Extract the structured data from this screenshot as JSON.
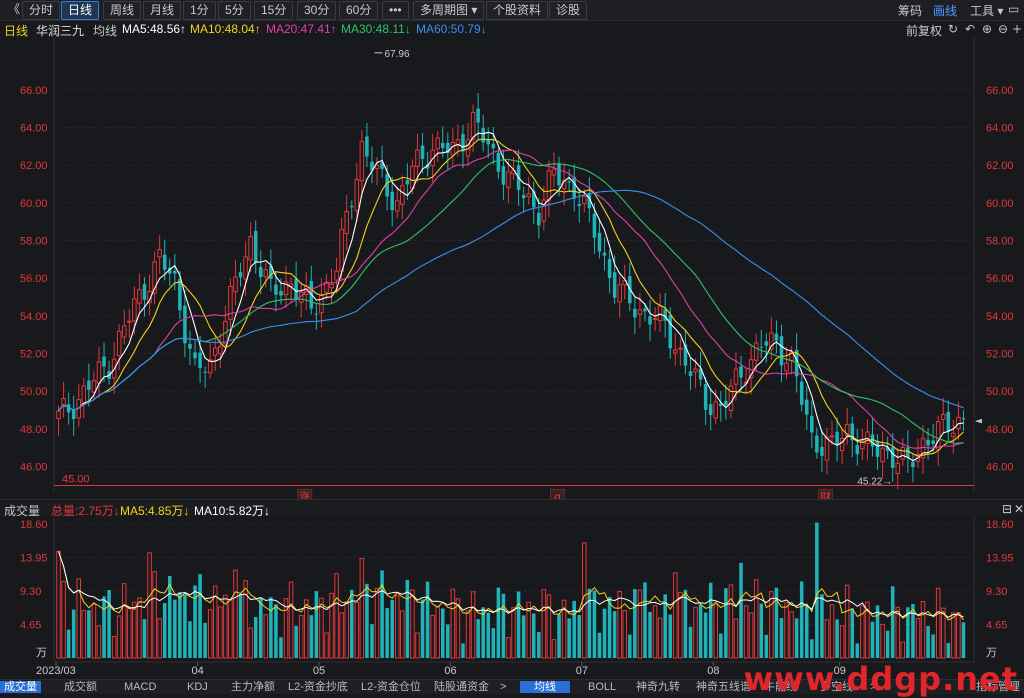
{
  "toolbar": {
    "back": "《",
    "tabs": [
      "分时",
      "日线",
      "周线",
      "月线",
      "1分",
      "5分",
      "15分",
      "30分",
      "60分",
      "•••",
      "多周期图 ▾",
      "个股资料",
      "诊股"
    ],
    "active_tab": "日线",
    "right_items": [
      "筹码",
      "画线",
      "工具 ▾"
    ],
    "right_active": "画线"
  },
  "info_row": {
    "period": "日线",
    "stock": "华润三九",
    "avg": "均线",
    "ma5": "MA5:48.56↑",
    "ma10": "MA10:48.04↑",
    "ma20": "MA20:47.41↑",
    "ma30": "MA30:48.11↓",
    "ma60": "MA60:50.79↓",
    "adjust": "前复权"
  },
  "colors": {
    "up": "#e0383a",
    "down": "#1fb3b8",
    "ma5": "#ffffff",
    "ma10": "#f2d21b",
    "ma20": "#e040a8",
    "ma30": "#2fc463",
    "ma60": "#3a8ff0",
    "background": "#18191d"
  },
  "chart_data": [
    {
      "type": "candlestick",
      "title": "华润三九 日线",
      "ylim": [
        45,
        68
      ],
      "yticks": [
        "66.00",
        "64.00",
        "62.00",
        "60.00",
        "58.00",
        "56.00",
        "54.00",
        "52.00",
        "50.00",
        "48.00",
        "46.00"
      ],
      "annotations": {
        "high_label": "67.96",
        "low_label": "45.22",
        "base_label": "45.00"
      },
      "event_marks": [
        "涨",
        "q",
        "财"
      ],
      "last_price_marker": "◄",
      "x_months": [
        "2023/03",
        "04",
        "05",
        "06",
        "07",
        "08",
        "09"
      ],
      "anchors": [
        [
          0,
          48.6
        ],
        [
          4,
          49.6
        ],
        [
          10,
          51.5
        ],
        [
          15,
          54.5
        ],
        [
          20,
          57.0
        ],
        [
          23,
          55.8
        ],
        [
          27,
          51.0
        ],
        [
          30,
          51.4
        ],
        [
          33,
          54.0
        ],
        [
          38,
          58.0
        ],
        [
          42,
          55.2
        ],
        [
          46,
          55.8
        ],
        [
          50,
          54.3
        ],
        [
          55,
          56.5
        ],
        [
          60,
          63.0
        ],
        [
          63,
          61.5
        ],
        [
          67,
          60.0
        ],
        [
          70,
          61.8
        ],
        [
          74,
          63.0
        ],
        [
          78,
          62.7
        ],
        [
          82,
          64.3
        ],
        [
          86,
          62.5
        ],
        [
          90,
          61.0
        ],
        [
          95,
          59.6
        ],
        [
          98,
          61.5
        ],
        [
          102,
          60.8
        ],
        [
          106,
          58.5
        ],
        [
          110,
          55.5
        ],
        [
          115,
          54.3
        ],
        [
          120,
          53.5
        ],
        [
          124,
          51.5
        ],
        [
          128,
          49.6
        ],
        [
          131,
          49.0
        ],
        [
          135,
          51.0
        ],
        [
          139,
          52.4
        ],
        [
          142,
          52.6
        ],
        [
          145,
          51.5
        ],
        [
          149,
          47.5
        ],
        [
          153,
          47.0
        ],
        [
          156,
          47.9
        ],
        [
          160,
          47.0
        ],
        [
          164,
          46.8
        ],
        [
          168,
          46.0
        ],
        [
          171,
          47.3
        ],
        [
          175,
          48.0
        ],
        [
          178,
          48.5
        ]
      ],
      "volume_anchors": [
        [
          0,
          8.2
        ],
        [
          10,
          6.5
        ],
        [
          20,
          9.0
        ],
        [
          30,
          8.0
        ],
        [
          40,
          6.8
        ],
        [
          50,
          7.0
        ],
        [
          60,
          9.3
        ],
        [
          70,
          8.0
        ],
        [
          80,
          6.3
        ],
        [
          90,
          7.0
        ],
        [
          100,
          6.2
        ],
        [
          110,
          7.3
        ],
        [
          120,
          6.3
        ],
        [
          130,
          7.6
        ],
        [
          140,
          7.5
        ],
        [
          150,
          6.8
        ],
        [
          160,
          6.0
        ],
        [
          170,
          6.2
        ],
        [
          178,
          5.5
        ]
      ],
      "volume_spikes": [
        [
          0,
          14.8
        ],
        [
          18,
          14.6
        ],
        [
          35,
          12.2
        ],
        [
          60,
          13.8
        ],
        [
          104,
          16.0
        ],
        [
          150,
          18.8
        ],
        [
          135,
          13.2
        ],
        [
          116,
          10.5
        ],
        [
          122,
          11.8
        ]
      ]
    },
    {
      "type": "bar",
      "title": "成交量",
      "unit": "万",
      "yticks": [
        "18.60",
        "13.95",
        "9.30",
        "4.65"
      ],
      "ylim": [
        0,
        18.6
      ]
    }
  ],
  "volume_row": {
    "label": "成交量",
    "total": "总量:2.75万↓",
    "ma5": "MA5:4.85万↓",
    "ma10": "MA10:5.82万↓"
  },
  "bottom_tabs": [
    "成交量",
    "成交额",
    "MACD",
    "KDJ",
    "主力净额",
    "L2-资金抄底",
    "L2-资金仓位",
    "陆股通资金",
    ">",
    "均线",
    "BOLL",
    "神奇九转",
    "神奇五线谱",
    "牛能线",
    "多空线",
    ">",
    "指标管理"
  ],
  "bottom_active": [
    "成交量",
    "均线"
  ],
  "watermark": "www.ddgp.net"
}
